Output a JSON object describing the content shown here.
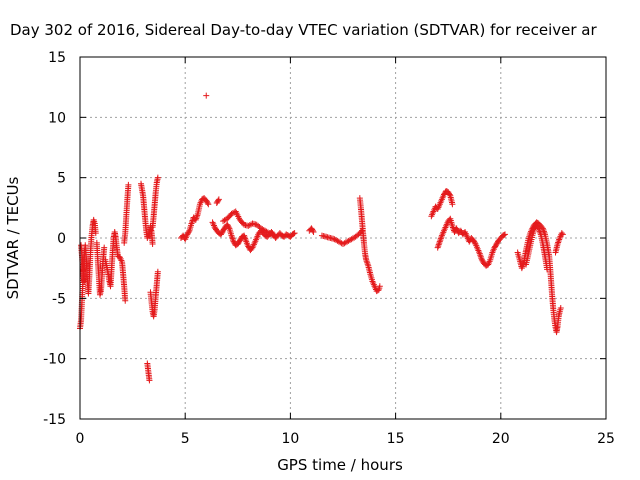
{
  "chart_data": {
    "type": "scatter",
    "title": "Day 302 of 2016, Sidereal Day-to-day VTEC variation (SDTVAR) for receiver ar",
    "xlabel": "GPS time / hours",
    "ylabel": "SDTVAR / TECUs",
    "xlim": [
      0,
      25
    ],
    "ylim": [
      -15,
      15
    ],
    "x_ticks": [
      0,
      5,
      10,
      15,
      20,
      25
    ],
    "y_ticks": [
      -15,
      -10,
      -5,
      0,
      5,
      10,
      15
    ],
    "grid": true,
    "marker": "plus",
    "color": "#e41a1c",
    "series": [
      {
        "name": "SDTVAR",
        "segments": [
          [
            [
              0.0,
              -7.5
            ],
            [
              0.05,
              -6.8
            ],
            [
              0.1,
              -5.0
            ],
            [
              0.15,
              -3.2
            ],
            [
              0.2,
              -1.5
            ],
            [
              0.25,
              -0.6
            ],
            [
              0.3,
              -1.8
            ],
            [
              0.35,
              -3.5
            ],
            [
              0.4,
              -4.6
            ],
            [
              0.45,
              -3.0
            ],
            [
              0.5,
              -1.2
            ],
            [
              0.55,
              0.2
            ],
            [
              0.6,
              1.0
            ],
            [
              0.65,
              1.5
            ],
            [
              0.7,
              1.2
            ],
            [
              0.75,
              0.4
            ]
          ],
          [
            [
              0.05,
              -0.6
            ],
            [
              0.1,
              -1.6
            ],
            [
              0.15,
              -2.8
            ],
            [
              0.2,
              -3.6
            ]
          ],
          [
            [
              0.8,
              -0.4
            ],
            [
              0.85,
              -2.0
            ],
            [
              0.9,
              -3.3
            ],
            [
              0.95,
              -4.7
            ],
            [
              1.0,
              -4.3
            ],
            [
              1.05,
              -3.0
            ],
            [
              1.1,
              -1.8
            ],
            [
              1.15,
              -0.8
            ]
          ],
          [
            [
              1.2,
              -1.8
            ],
            [
              1.3,
              -2.6
            ],
            [
              1.4,
              -3.6
            ],
            [
              1.45,
              -4.0
            ],
            [
              1.5,
              -2.6
            ],
            [
              1.55,
              -1.2
            ],
            [
              1.6,
              0.0
            ],
            [
              1.65,
              0.5
            ],
            [
              1.7,
              0.0
            ],
            [
              1.75,
              -0.8
            ],
            [
              1.8,
              -1.5
            ],
            [
              1.9,
              -1.6
            ],
            [
              2.0,
              -2.0
            ],
            [
              2.05,
              -3.0
            ],
            [
              2.1,
              -4.0
            ],
            [
              2.15,
              -5.2
            ]
          ],
          [
            [
              2.1,
              -0.4
            ],
            [
              2.15,
              0.4
            ],
            [
              2.2,
              1.8
            ],
            [
              2.25,
              3.2
            ],
            [
              2.3,
              4.4
            ]
          ],
          [
            [
              2.9,
              4.5
            ],
            [
              3.0,
              3.5
            ],
            [
              3.05,
              2.5
            ],
            [
              3.1,
              1.5
            ],
            [
              3.15,
              0.6
            ],
            [
              3.2,
              0.0
            ],
            [
              3.3,
              0.4
            ],
            [
              3.35,
              1.0
            ],
            [
              3.4,
              0.5
            ],
            [
              3.45,
              -0.5
            ]
          ],
          [
            [
              3.2,
              -10.4
            ],
            [
              3.25,
              -11.1
            ],
            [
              3.3,
              -11.8
            ]
          ],
          [
            [
              3.35,
              -4.5
            ],
            [
              3.4,
              -5.3
            ],
            [
              3.45,
              -6.1
            ],
            [
              3.5,
              -6.5
            ],
            [
              3.55,
              -5.9
            ],
            [
              3.6,
              -4.8
            ],
            [
              3.65,
              -3.8
            ],
            [
              3.7,
              -2.8
            ]
          ],
          [
            [
              3.45,
              0.9
            ],
            [
              3.5,
              1.8
            ],
            [
              3.55,
              2.8
            ],
            [
              3.6,
              3.8
            ],
            [
              3.65,
              4.6
            ],
            [
              3.7,
              5.0
            ]
          ],
          [
            [
              4.8,
              0.0
            ],
            [
              4.9,
              0.2
            ],
            [
              5.0,
              -0.1
            ],
            [
              5.1,
              0.3
            ],
            [
              5.2,
              0.6
            ],
            [
              5.3,
              1.2
            ],
            [
              5.4,
              1.7
            ],
            [
              5.5,
              1.5
            ],
            [
              5.6,
              2.0
            ],
            [
              5.7,
              2.8
            ],
            [
              5.8,
              3.2
            ],
            [
              5.9,
              3.3
            ],
            [
              6.0,
              3.1
            ],
            [
              6.1,
              2.8
            ]
          ],
          [
            [
              6.0,
              11.8
            ]
          ],
          [
            [
              6.3,
              1.3
            ],
            [
              6.4,
              0.9
            ],
            [
              6.5,
              0.6
            ],
            [
              6.6,
              0.4
            ],
            [
              6.7,
              0.3
            ],
            [
              6.8,
              0.6
            ],
            [
              6.9,
              0.9
            ],
            [
              7.0,
              1.1
            ],
            [
              7.1,
              0.8
            ],
            [
              7.2,
              0.2
            ],
            [
              7.3,
              -0.3
            ],
            [
              7.4,
              -0.6
            ],
            [
              7.5,
              -0.5
            ],
            [
              7.6,
              -0.2
            ],
            [
              7.7,
              0.1
            ],
            [
              7.8,
              0.2
            ],
            [
              7.9,
              -0.3
            ],
            [
              8.0,
              -0.7
            ],
            [
              8.1,
              -1.0
            ],
            [
              8.2,
              -0.8
            ],
            [
              8.3,
              -0.4
            ],
            [
              8.4,
              0.0
            ],
            [
              8.5,
              0.4
            ],
            [
              8.6,
              0.6
            ],
            [
              8.7,
              0.4
            ],
            [
              8.8,
              0.2
            ],
            [
              8.9,
              0.1
            ],
            [
              9.0,
              0.3
            ],
            [
              9.1,
              0.5
            ],
            [
              9.2,
              0.3
            ],
            [
              9.3,
              0.0
            ],
            [
              9.4,
              0.2
            ],
            [
              9.5,
              0.4
            ],
            [
              9.6,
              0.2
            ],
            [
              9.7,
              0.1
            ],
            [
              9.8,
              0.3
            ],
            [
              9.9,
              0.2
            ],
            [
              10.0,
              0.1
            ],
            [
              10.1,
              0.3
            ],
            [
              10.2,
              0.4
            ]
          ],
          [
            [
              6.5,
              2.9
            ],
            [
              6.6,
              3.2
            ]
          ],
          [
            [
              6.8,
              1.4
            ],
            [
              7.0,
              1.6
            ],
            [
              7.2,
              2.0
            ],
            [
              7.4,
              2.2
            ],
            [
              7.6,
              1.5
            ],
            [
              7.8,
              1.1
            ],
            [
              8.0,
              1.0
            ],
            [
              8.2,
              1.2
            ],
            [
              8.4,
              1.1
            ],
            [
              8.6,
              0.8
            ],
            [
              8.8,
              0.6
            ],
            [
              9.0,
              0.4
            ],
            [
              9.2,
              0.2
            ]
          ],
          [
            [
              10.9,
              0.6
            ],
            [
              11.0,
              0.8
            ],
            [
              11.1,
              0.5
            ]
          ],
          [
            [
              11.5,
              0.2
            ],
            [
              11.7,
              0.1
            ],
            [
              11.9,
              0.0
            ],
            [
              12.1,
              -0.1
            ],
            [
              12.3,
              -0.3
            ],
            [
              12.5,
              -0.5
            ],
            [
              12.7,
              -0.3
            ],
            [
              12.9,
              -0.1
            ],
            [
              13.1,
              0.1
            ],
            [
              13.3,
              0.4
            ],
            [
              13.4,
              0.6
            ]
          ],
          [
            [
              13.3,
              3.3
            ],
            [
              13.35,
              2.5
            ],
            [
              13.4,
              1.5
            ],
            [
              13.45,
              0.5
            ],
            [
              13.5,
              -0.5
            ],
            [
              13.55,
              -1.3
            ],
            [
              13.6,
              -1.8
            ],
            [
              13.7,
              -2.3
            ],
            [
              13.8,
              -3.0
            ],
            [
              13.9,
              -3.6
            ],
            [
              14.0,
              -4.0
            ],
            [
              14.1,
              -4.4
            ],
            [
              14.2,
              -4.3
            ],
            [
              14.25,
              -4.0
            ]
          ],
          [
            [
              16.7,
              1.8
            ],
            [
              16.8,
              2.2
            ],
            [
              16.9,
              2.6
            ],
            [
              17.0,
              2.4
            ],
            [
              17.1,
              2.8
            ],
            [
              17.2,
              3.2
            ],
            [
              17.3,
              3.6
            ],
            [
              17.4,
              3.9
            ],
            [
              17.5,
              3.8
            ],
            [
              17.6,
              3.5
            ],
            [
              17.7,
              2.8
            ]
          ],
          [
            [
              17.0,
              -0.8
            ],
            [
              17.1,
              -0.3
            ],
            [
              17.2,
              0.2
            ],
            [
              17.3,
              0.6
            ],
            [
              17.4,
              1.0
            ],
            [
              17.5,
              1.4
            ],
            [
              17.6,
              1.6
            ],
            [
              17.7,
              1.0
            ],
            [
              17.8,
              0.5
            ],
            [
              17.9,
              0.8
            ],
            [
              18.0,
              0.4
            ],
            [
              18.1,
              0.6
            ],
            [
              18.2,
              0.3
            ],
            [
              18.3,
              0.5
            ],
            [
              18.4,
              0.1
            ],
            [
              18.5,
              -0.3
            ],
            [
              18.6,
              0.0
            ],
            [
              18.7,
              -0.2
            ],
            [
              18.8,
              -0.5
            ],
            [
              18.9,
              -0.9
            ],
            [
              19.0,
              -1.3
            ],
            [
              19.1,
              -1.8
            ],
            [
              19.2,
              -2.1
            ],
            [
              19.3,
              -2.3
            ],
            [
              19.4,
              -2.2
            ],
            [
              19.5,
              -1.8
            ],
            [
              19.6,
              -1.2
            ],
            [
              19.7,
              -0.8
            ],
            [
              19.8,
              -0.5
            ],
            [
              19.9,
              -0.2
            ],
            [
              20.0,
              0.0
            ],
            [
              20.1,
              0.2
            ],
            [
              20.2,
              0.3
            ]
          ],
          [
            [
              20.8,
              -1.2
            ],
            [
              20.9,
              -1.8
            ],
            [
              21.0,
              -2.5
            ],
            [
              21.1,
              -2.0
            ],
            [
              21.2,
              -1.0
            ],
            [
              21.3,
              -0.2
            ],
            [
              21.4,
              0.4
            ],
            [
              21.5,
              0.8
            ],
            [
              21.6,
              1.1
            ],
            [
              21.7,
              1.3
            ],
            [
              21.8,
              1.2
            ],
            [
              21.9,
              1.0
            ],
            [
              22.0,
              0.8
            ],
            [
              22.1,
              0.3
            ],
            [
              22.2,
              -0.5
            ],
            [
              22.3,
              -1.5
            ],
            [
              22.35,
              -2.6
            ],
            [
              22.4,
              -3.8
            ],
            [
              22.45,
              -5.0
            ],
            [
              22.5,
              -6.0
            ],
            [
              22.55,
              -6.8
            ],
            [
              22.6,
              -7.4
            ],
            [
              22.65,
              -7.8
            ],
            [
              22.7,
              -7.3
            ],
            [
              22.75,
              -6.5
            ],
            [
              22.8,
              -6.1
            ],
            [
              22.85,
              -5.8
            ]
          ],
          [
            [
              21.2,
              -2.2
            ],
            [
              21.3,
              -1.4
            ],
            [
              21.4,
              -0.6
            ],
            [
              21.5,
              0.2
            ],
            [
              21.6,
              0.8
            ],
            [
              21.7,
              1.0
            ],
            [
              21.8,
              0.8
            ],
            [
              21.9,
              0.3
            ],
            [
              22.0,
              -0.5
            ],
            [
              22.1,
              -1.5
            ],
            [
              22.2,
              -2.6
            ]
          ],
          [
            [
              22.6,
              -1.2
            ],
            [
              22.7,
              -0.5
            ],
            [
              22.8,
              0.0
            ],
            [
              22.9,
              0.4
            ],
            [
              22.95,
              0.3
            ]
          ]
        ]
      }
    ]
  }
}
